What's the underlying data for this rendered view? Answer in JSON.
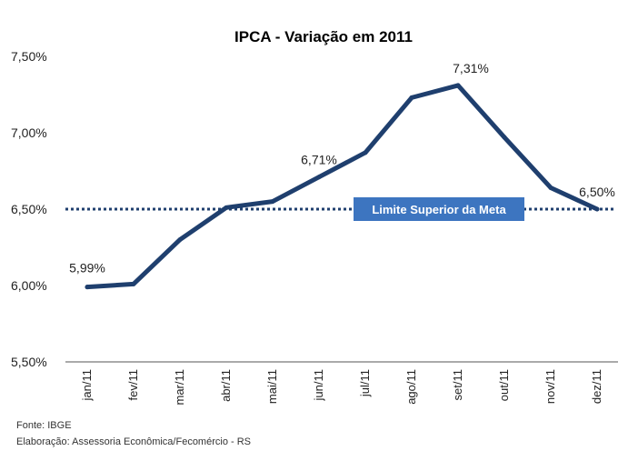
{
  "chart_data": {
    "type": "line",
    "title": "IPCA - Variação em 2011",
    "xlabel": "",
    "ylabel": "",
    "categories": [
      "jan/11",
      "fev/11",
      "mar/11",
      "abr/11",
      "mai/11",
      "jun/11",
      "jul/11",
      "ago/11",
      "set/11",
      "out/11",
      "nov/11",
      "dez/11"
    ],
    "series": [
      {
        "values": [
          5.99,
          6.01,
          6.3,
          6.51,
          6.55,
          6.71,
          6.87,
          7.23,
          7.31,
          6.97,
          6.64,
          6.5
        ]
      }
    ],
    "ylim": [
      5.5,
      7.5
    ],
    "yticks": [
      {
        "value": 5.5,
        "label": "5,50%"
      },
      {
        "value": 6.0,
        "label": "6,00%"
      },
      {
        "value": 6.5,
        "label": "6,50%"
      },
      {
        "value": 7.0,
        "label": "7,00%"
      },
      {
        "value": 7.5,
        "label": "7,50%"
      }
    ],
    "data_labels": [
      {
        "index": 0,
        "text": "5,99%"
      },
      {
        "index": 5,
        "text": "6,71%"
      },
      {
        "index": 8,
        "text": "7,31%"
      },
      {
        "index": 11,
        "text": "6,50%"
      }
    ],
    "reference_line": {
      "value": 6.5,
      "label": "Limite Superior da Meta",
      "style": "dotted"
    },
    "grid": false,
    "colors": {
      "line": "#1f3f6e",
      "reference": "#1f3f6e",
      "label_box": "#3d75c0"
    }
  },
  "footer": {
    "source": "Fonte: IBGE",
    "credit": "Elaboração: Assessoria Econômica/Fecomércio - RS"
  }
}
